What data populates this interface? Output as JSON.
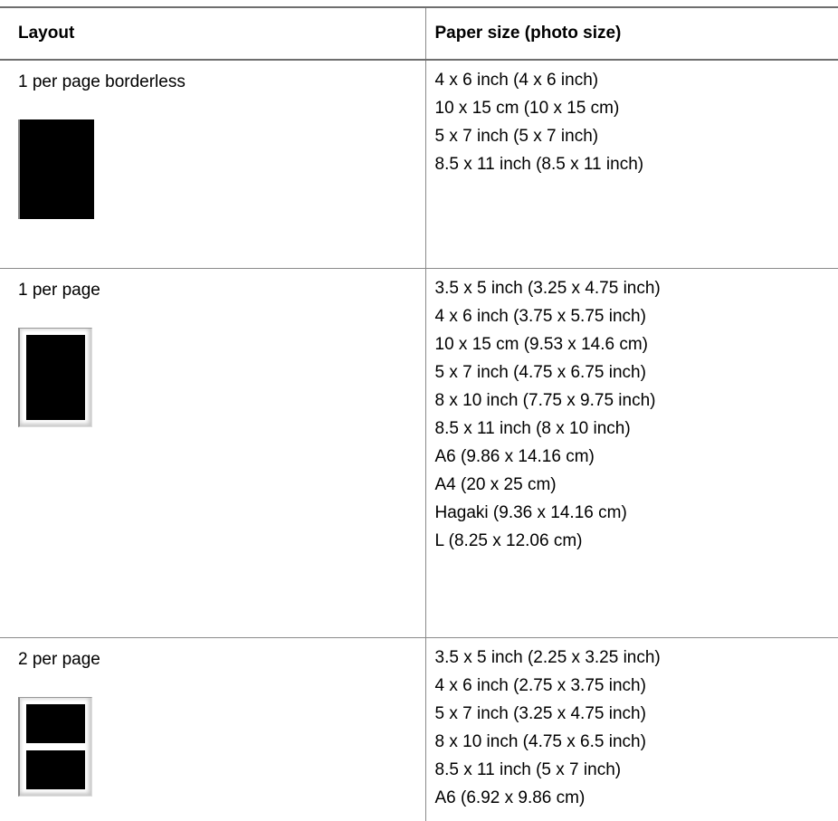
{
  "table": {
    "headers": {
      "layout": "Layout",
      "paper": "Paper size (photo size)"
    },
    "rows": [
      {
        "layout": "1 per page borderless",
        "thumbnail": "borderless-photo-icon",
        "sizes": [
          "4 x 6 inch (4 x 6 inch)",
          "10 x 15 cm (10 x 15 cm)",
          "5 x 7 inch (5 x 7 inch)",
          "8.5 x 11 inch (8.5 x 11 inch)"
        ]
      },
      {
        "layout": "1 per page",
        "thumbnail": "single-photo-with-border-icon",
        "sizes": [
          "3.5 x 5 inch (3.25 x 4.75 inch)",
          "4 x 6 inch (3.75 x 5.75 inch)",
          "10 x 15 cm (9.53 x 14.6 cm)",
          "5 x 7 inch (4.75 x 6.75 inch)",
          "8 x 10 inch (7.75 x 9.75 inch)",
          "8.5 x 11 inch (8 x 10 inch)",
          "A6 (9.86 x 14.16 cm)",
          "A4 (20 x 25 cm)",
          "Hagaki (9.36 x 14.16 cm)",
          "L (8.25 x 12.06 cm)"
        ]
      },
      {
        "layout": "2 per page",
        "thumbnail": "two-photos-per-page-icon",
        "sizes": [
          "3.5 x 5 inch (2.25 x 3.25 inch)",
          "4 x 6 inch (2.75 x 3.75 inch)",
          "5 x 7 inch (3.25 x 4.75 inch)",
          "8 x 10 inch (4.75 x 6.5 inch)",
          "8.5 x 11 inch (5 x 7 inch)",
          "A6 (6.92 x 9.86 cm)"
        ]
      }
    ]
  }
}
